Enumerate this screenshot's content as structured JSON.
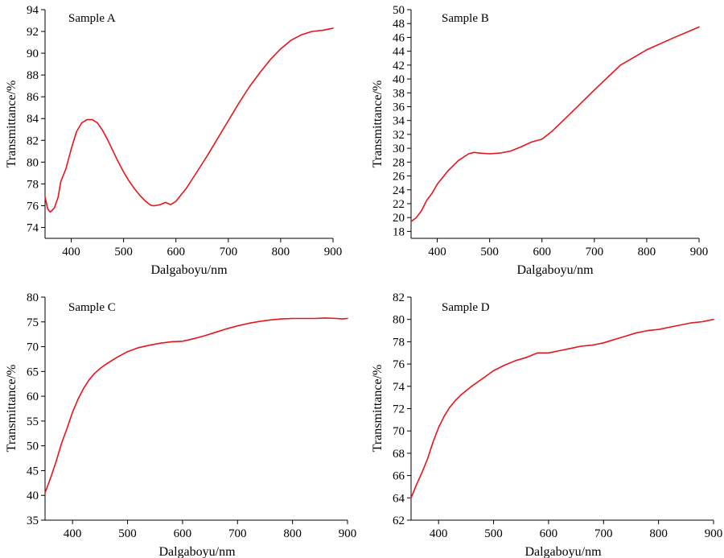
{
  "colors": {
    "series": "#e8141b",
    "axis": "#000000",
    "background": "#ffffff"
  },
  "chart_data": [
    {
      "type": "line",
      "title": "Sample A",
      "xlabel": "Dalgaboyu/nm",
      "ylabel": "Transmittance/%",
      "xlim": [
        350,
        900
      ],
      "ylim": [
        73,
        94
      ],
      "xticks": [
        400,
        500,
        600,
        700,
        800,
        900
      ],
      "yticks": [
        74,
        76,
        78,
        80,
        82,
        84,
        86,
        88,
        90,
        92,
        94
      ],
      "series": [
        {
          "x": [
            350,
            355,
            360,
            368,
            375,
            380,
            390,
            400,
            410,
            420,
            430,
            440,
            450,
            460,
            470,
            480,
            490,
            500,
            510,
            520,
            530,
            540,
            550,
            555,
            560,
            570,
            580,
            590,
            600,
            620,
            640,
            660,
            680,
            700,
            720,
            740,
            760,
            780,
            800,
            820,
            840,
            860,
            880,
            890,
            900
          ],
          "y": [
            76.8,
            75.7,
            75.4,
            75.8,
            76.8,
            78.2,
            79.4,
            81.2,
            82.8,
            83.6,
            83.9,
            83.9,
            83.6,
            82.9,
            82.0,
            81.0,
            80.0,
            79.1,
            78.3,
            77.6,
            77.0,
            76.5,
            76.1,
            76.0,
            76.0,
            76.1,
            76.3,
            76.1,
            76.4,
            77.6,
            79.1,
            80.6,
            82.2,
            83.8,
            85.4,
            86.9,
            88.2,
            89.4,
            90.4,
            91.2,
            91.7,
            92.0,
            92.1,
            92.2,
            92.3
          ]
        }
      ]
    },
    {
      "type": "line",
      "title": "Sample B",
      "xlabel": "Dalgaboyu/nm",
      "ylabel": "Transmittance/%",
      "xlim": [
        350,
        900
      ],
      "ylim": [
        17,
        50
      ],
      "xticks": [
        400,
        500,
        600,
        700,
        800,
        900
      ],
      "yticks": [
        18,
        20,
        22,
        24,
        26,
        28,
        30,
        32,
        34,
        36,
        38,
        40,
        42,
        44,
        46,
        48,
        50
      ],
      "series": [
        {
          "x": [
            350,
            360,
            370,
            380,
            390,
            400,
            420,
            440,
            460,
            470,
            480,
            500,
            520,
            540,
            560,
            580,
            600,
            620,
            650,
            700,
            750,
            800,
            850,
            900
          ],
          "y": [
            19.4,
            20.0,
            21.0,
            22.5,
            23.5,
            24.8,
            26.7,
            28.2,
            29.2,
            29.4,
            29.3,
            29.2,
            29.3,
            29.6,
            30.2,
            30.9,
            31.3,
            32.5,
            34.7,
            38.4,
            42.0,
            44.2,
            45.9,
            47.5
          ]
        }
      ]
    },
    {
      "type": "line",
      "title": "Sample C",
      "xlabel": "Dalgaboyu/nm",
      "ylabel": "Transmittance/%",
      "xlim": [
        350,
        900
      ],
      "ylim": [
        35,
        80
      ],
      "xticks": [
        400,
        500,
        600,
        700,
        800,
        900
      ],
      "yticks": [
        35,
        40,
        45,
        50,
        55,
        60,
        65,
        70,
        75,
        80
      ],
      "series": [
        {
          "x": [
            350,
            360,
            370,
            380,
            390,
            400,
            410,
            420,
            430,
            440,
            450,
            460,
            480,
            500,
            520,
            540,
            560,
            580,
            600,
            620,
            640,
            660,
            680,
            700,
            720,
            740,
            760,
            780,
            800,
            820,
            840,
            860,
            880,
            890,
            900
          ],
          "y": [
            40.5,
            43.5,
            46.8,
            50.5,
            53.5,
            56.8,
            59.4,
            61.6,
            63.3,
            64.6,
            65.6,
            66.4,
            67.8,
            69.0,
            69.8,
            70.3,
            70.7,
            71.0,
            71.1,
            71.6,
            72.2,
            72.9,
            73.6,
            74.2,
            74.7,
            75.1,
            75.4,
            75.6,
            75.7,
            75.7,
            75.7,
            75.8,
            75.7,
            75.6,
            75.7
          ]
        }
      ]
    },
    {
      "type": "line",
      "title": "Sample D",
      "xlabel": "Dalgaboyu/nm",
      "ylabel": "Transmittance/%",
      "xlim": [
        350,
        900
      ],
      "ylim": [
        62,
        82
      ],
      "xticks": [
        400,
        500,
        600,
        700,
        800,
        900
      ],
      "yticks": [
        62,
        64,
        66,
        68,
        70,
        72,
        74,
        76,
        78,
        80,
        82
      ],
      "series": [
        {
          "x": [
            350,
            360,
            370,
            380,
            390,
            400,
            410,
            420,
            430,
            440,
            450,
            460,
            480,
            500,
            520,
            540,
            560,
            580,
            600,
            620,
            640,
            660,
            680,
            700,
            720,
            740,
            760,
            780,
            800,
            820,
            840,
            860,
            880,
            900
          ],
          "y": [
            64.0,
            65.2,
            66.3,
            67.5,
            69.0,
            70.3,
            71.3,
            72.1,
            72.7,
            73.2,
            73.6,
            74.0,
            74.7,
            75.4,
            75.9,
            76.3,
            76.6,
            77.0,
            77.0,
            77.2,
            77.4,
            77.6,
            77.7,
            77.9,
            78.2,
            78.5,
            78.8,
            79.0,
            79.1,
            79.3,
            79.5,
            79.7,
            79.8,
            80.0
          ]
        }
      ]
    }
  ]
}
